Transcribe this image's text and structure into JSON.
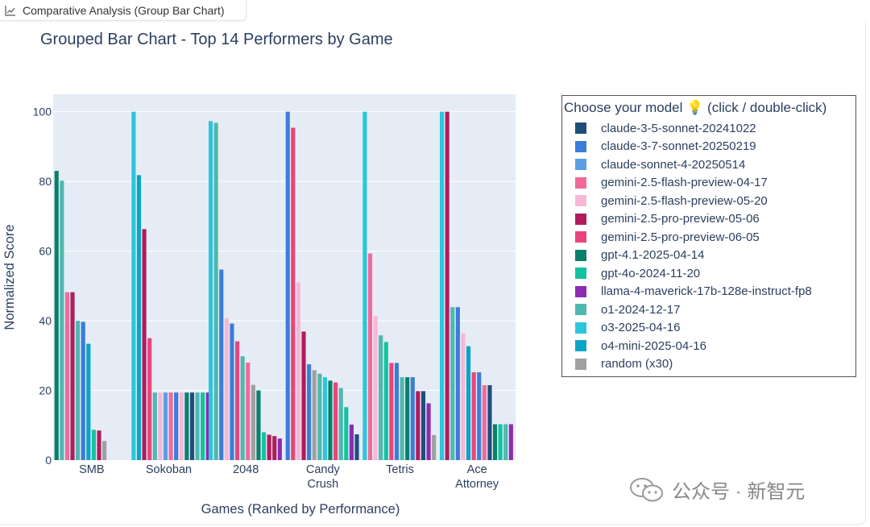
{
  "tab": {
    "label": "Comparative Analysis (Group Bar Chart)"
  },
  "watermark": {
    "text": "公众号 · 新智元"
  },
  "chart_data": {
    "type": "bar",
    "title": "Grouped Bar Chart - Top 14 Performers by Game",
    "xlabel": "Games (Ranked by Performance)",
    "ylabel": "Normalized Score",
    "ylim": [
      0,
      105
    ],
    "yticks": [
      0,
      20,
      40,
      60,
      80,
      100
    ],
    "legend_title": "Choose your model 💡 (click / double-click)",
    "legend_position": "right",
    "categories": [
      "SMB",
      "Sokoban",
      "2048",
      "Candy Crush",
      "Tetris",
      "Ace Attorney"
    ],
    "category_lines": [
      [
        "SMB"
      ],
      [
        "Sokoban"
      ],
      [
        "2048"
      ],
      [
        "Candy",
        "Crush"
      ],
      [
        "Tetris"
      ],
      [
        "Ace",
        "Attorney"
      ]
    ],
    "models": [
      {
        "name": "claude-3-5-sonnet-20241022",
        "color": "#1f4e79"
      },
      {
        "name": "claude-3-7-sonnet-20250219",
        "color": "#3b7dd8"
      },
      {
        "name": "claude-sonnet-4-20250514",
        "color": "#5b9ee6"
      },
      {
        "name": "gemini-2.5-flash-preview-04-17",
        "color": "#ef6b9a"
      },
      {
        "name": "gemini-2.5-flash-preview-05-20",
        "color": "#f6b8d6"
      },
      {
        "name": "gemini-2.5-pro-preview-05-06",
        "color": "#b01c5c"
      },
      {
        "name": "gemini-2.5-pro-preview-06-05",
        "color": "#e8457a"
      },
      {
        "name": "gpt-4.1-2025-04-14",
        "color": "#0b7f6a"
      },
      {
        "name": "gpt-4o-2024-11-20",
        "color": "#13c3a0"
      },
      {
        "name": "llama-4-maverick-17b-128e-instruct-fp8",
        "color": "#8c2bb0"
      },
      {
        "name": "o1-2024-12-17",
        "color": "#4fb8ae"
      },
      {
        "name": "o3-2025-04-16",
        "color": "#2bc6dc"
      },
      {
        "name": "o4-mini-2025-04-16",
        "color": "#0aa4c6"
      },
      {
        "name": "random (x30)",
        "color": "#a0a0a0"
      }
    ],
    "groups": [
      {
        "category": "SMB",
        "bars": [
          {
            "model": "gpt-4.1-2025-04-14",
            "value": 83
          },
          {
            "model": "o1-2024-12-17",
            "value": 80.2
          },
          {
            "model": "gemini-2.5-flash-preview-04-17",
            "value": 48.2
          },
          {
            "model": "gemini-2.5-pro-preview-05-06",
            "value": 48.2
          },
          {
            "model": "o1-2024-12-17",
            "value": 40
          },
          {
            "model": "claude-3-7-sonnet-20250219",
            "value": 39.7
          },
          {
            "model": "o4-mini-2025-04-16",
            "value": 33.4
          },
          {
            "model": "gpt-4o-2024-11-20",
            "value": 8.7
          },
          {
            "model": "gemini-2.5-pro-preview-05-06",
            "value": 8.5
          },
          {
            "model": "random (x30)",
            "value": 5.5
          }
        ]
      },
      {
        "category": "Sokoban",
        "bars": [
          {
            "model": "o3-2025-04-16",
            "value": 100
          },
          {
            "model": "o4-mini-2025-04-16",
            "value": 81.8
          },
          {
            "model": "gemini-2.5-pro-preview-05-06",
            "value": 66.3
          },
          {
            "model": "gemini-2.5-pro-preview-06-05",
            "value": 35
          },
          {
            "model": "o1-2024-12-17",
            "value": 19.4
          },
          {
            "model": "gemini-2.5-flash-preview-05-20",
            "value": 19.4
          },
          {
            "model": "claude-sonnet-4-20250514",
            "value": 19.4
          },
          {
            "model": "gemini-2.5-flash-preview-04-17",
            "value": 19.4
          },
          {
            "model": "claude-3-7-sonnet-20250219",
            "value": 19.4
          },
          {
            "model": "gemini-2.5-flash-preview-05-20",
            "value": 19.4
          },
          {
            "model": "gpt-4.1-2025-04-14",
            "value": 19.4
          },
          {
            "model": "claude-3-5-sonnet-20241022",
            "value": 19.4
          },
          {
            "model": "o1-2024-12-17",
            "value": 19.4
          },
          {
            "model": "gpt-4o-2024-11-20",
            "value": 19.4
          },
          {
            "model": "llama-4-maverick-17b-128e-instruct-fp8",
            "value": 19.4
          }
        ]
      },
      {
        "category": "2048",
        "bars": [
          {
            "model": "o3-2025-04-16",
            "value": 97.3
          },
          {
            "model": "o1-2024-12-17",
            "value": 96.8
          },
          {
            "model": "claude-3-7-sonnet-20250219",
            "value": 54.7
          },
          {
            "model": "gemini-2.5-flash-preview-05-20",
            "value": 40.7
          },
          {
            "model": "claude-3-7-sonnet-20250219",
            "value": 39.2
          },
          {
            "model": "gemini-2.5-pro-preview-06-05",
            "value": 34.1
          },
          {
            "model": "o1-2024-12-17",
            "value": 29.8
          },
          {
            "model": "gemini-2.5-flash-preview-04-17",
            "value": 28
          },
          {
            "model": "random (x30)",
            "value": 21.6
          },
          {
            "model": "gpt-4.1-2025-04-14",
            "value": 20
          },
          {
            "model": "gpt-4o-2024-11-20",
            "value": 8
          },
          {
            "model": "gemini-2.5-pro-preview-05-06",
            "value": 7.3
          },
          {
            "model": "gemini-2.5-pro-preview-05-06",
            "value": 6.9
          },
          {
            "model": "llama-4-maverick-17b-128e-instruct-fp8",
            "value": 6.2
          }
        ]
      },
      {
        "category": "Candy Crush",
        "bars": [
          {
            "model": "claude-3-7-sonnet-20250219",
            "value": 100
          },
          {
            "model": "gemini-2.5-pro-preview-06-05",
            "value": 95.4
          },
          {
            "model": "gemini-2.5-flash-preview-05-20",
            "value": 51
          },
          {
            "model": "gemini-2.5-pro-preview-05-06",
            "value": 36.9
          },
          {
            "model": "claude-3-7-sonnet-20250219",
            "value": 27.5
          },
          {
            "model": "random (x30)",
            "value": 25.8
          },
          {
            "model": "o1-2024-12-17",
            "value": 24.8
          },
          {
            "model": "o3-2025-04-16",
            "value": 23.8
          },
          {
            "model": "gpt-4.1-2025-04-14",
            "value": 22.8
          },
          {
            "model": "gemini-2.5-pro-preview-06-05",
            "value": 22.3
          },
          {
            "model": "o1-2024-12-17",
            "value": 20.7
          },
          {
            "model": "gpt-4o-2024-11-20",
            "value": 15.2
          },
          {
            "model": "llama-4-maverick-17b-128e-instruct-fp8",
            "value": 10.2
          },
          {
            "model": "claude-3-5-sonnet-20241022",
            "value": 7.4
          }
        ]
      },
      {
        "category": "Tetris",
        "bars": [
          {
            "model": "o3-2025-04-16",
            "value": 100
          },
          {
            "model": "gemini-2.5-flash-preview-04-17",
            "value": 59.3
          },
          {
            "model": "gemini-2.5-flash-preview-05-20",
            "value": 41.4
          },
          {
            "model": "o1-2024-12-17",
            "value": 35.8
          },
          {
            "model": "gpt-4o-2024-11-20",
            "value": 33.9
          },
          {
            "model": "gemini-2.5-pro-preview-06-05",
            "value": 27.9
          },
          {
            "model": "claude-3-7-sonnet-20250219",
            "value": 27.9
          },
          {
            "model": "o1-2024-12-17",
            "value": 23.8
          },
          {
            "model": "gpt-4.1-2025-04-14",
            "value": 23.8
          },
          {
            "model": "claude-3-7-sonnet-20250219",
            "value": 23.8
          },
          {
            "model": "gemini-2.5-pro-preview-05-06",
            "value": 19.8
          },
          {
            "model": "claude-3-5-sonnet-20241022",
            "value": 19.8
          },
          {
            "model": "llama-4-maverick-17b-128e-instruct-fp8",
            "value": 16.3
          },
          {
            "model": "random (x30)",
            "value": 7.2
          }
        ]
      },
      {
        "category": "Ace Attorney",
        "bars": [
          {
            "model": "o3-2025-04-16",
            "value": 100
          },
          {
            "model": "gemini-2.5-pro-preview-05-06",
            "value": 100
          },
          {
            "model": "o1-2024-12-17",
            "value": 43.9
          },
          {
            "model": "claude-3-7-sonnet-20250219",
            "value": 43.9
          },
          {
            "model": "gemini-2.5-flash-preview-05-20",
            "value": 36.4
          },
          {
            "model": "o4-mini-2025-04-16",
            "value": 32.7
          },
          {
            "model": "gemini-2.5-pro-preview-06-05",
            "value": 25.2
          },
          {
            "model": "claude-3-7-sonnet-20250219",
            "value": 25.2
          },
          {
            "model": "gemini-2.5-flash-preview-04-17",
            "value": 21.5
          },
          {
            "model": "claude-3-5-sonnet-20241022",
            "value": 21.5
          },
          {
            "model": "gpt-4.1-2025-04-14",
            "value": 10.3
          },
          {
            "model": "gpt-4o-2024-11-20",
            "value": 10.3
          },
          {
            "model": "o1-2024-12-17",
            "value": 10.3
          },
          {
            "model": "llama-4-maverick-17b-128e-instruct-fp8",
            "value": 10.3
          }
        ]
      }
    ]
  }
}
